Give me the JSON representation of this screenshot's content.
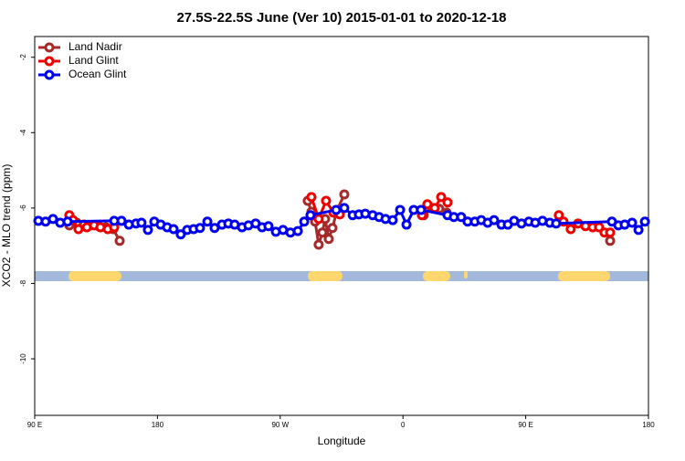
{
  "chart_data": {
    "type": "line",
    "title": "27.5S-22.5S June (Ver 10)   2015-01-01 to 2020-12-18",
    "x_label": "Longitude",
    "y_label": "XCO2 - MLO trend (ppm)",
    "xlim": [
      90,
      540
    ],
    "xticks": [
      {
        "value": 90,
        "label": "90 E"
      },
      180,
      {
        "value": 270,
        "label": "90 W"
      },
      {
        "value": 360,
        "label": "0"
      },
      {
        "value": 450,
        "label": "90 E"
      },
      {
        "value": 540,
        "label": "180"
      }
    ],
    "ylim": [
      -11.5,
      -1.45
    ],
    "yticks": [
      -2,
      -4,
      -6,
      -8,
      -10
    ],
    "legend": "top-left",
    "series": [
      {
        "name": "Land Nadir",
        "color": "#a52a2a",
        "x": [
          115.4,
          120.8,
          126.2,
          131.5,
          136.9,
          142.2,
          147.6,
          152.3,
          200,
          290.2,
          292.9,
          295.6,
          298.2,
          300.9,
          302.9,
          305.6,
          308.3,
          311.7,
          317.0,
          350,
          375.2,
          381.3,
          386.6,
          392.0,
          450,
          511.9
        ],
        "values": [
          -6.46,
          -6.39,
          -6.44,
          -6.46,
          -6.48,
          -6.51,
          -6.56,
          -6.87,
          null,
          -5.81,
          -6.1,
          -6.36,
          -6.97,
          -6.65,
          -6.29,
          -6.82,
          -6.53,
          -6.05,
          -5.64,
          null,
          -6.19,
          -6.0,
          -6.02,
          -6.12,
          null,
          -6.87
        ]
      },
      {
        "name": "Land Glint",
        "color": "#ee0000",
        "x": [
          115.4,
          118.1,
          122.1,
          128.2,
          133.5,
          138.2,
          143.6,
          148.3,
          200,
          292.9,
          298.2,
          303.6,
          309.0,
          313.7,
          350,
          373.9,
          377.9,
          383.3,
          388.0,
          392.7,
          450,
          474.3,
          477.7,
          483.0,
          488.4,
          493.8,
          499.1,
          503.8,
          507.8,
          511.9
        ],
        "values": [
          -6.19,
          -6.32,
          -6.56,
          -6.51,
          -6.46,
          -6.51,
          -6.56,
          -6.51,
          null,
          -5.71,
          -6.29,
          -5.81,
          -6.12,
          -6.17,
          null,
          -6.19,
          -5.9,
          -6.0,
          -5.71,
          -5.85,
          null,
          -6.19,
          -6.36,
          -6.56,
          -6.41,
          -6.48,
          -6.51,
          -6.51,
          -6.65,
          -6.65
        ]
      },
      {
        "name": "Ocean Glint",
        "color": "#0000ee",
        "x": [
          92.7,
          98.0,
          103.4,
          108.7,
          114.1,
          148.3,
          153.6,
          159.0,
          164.3,
          168.3,
          173.0,
          177.7,
          182.4,
          187.1,
          191.8,
          197.1,
          201.8,
          206.5,
          211.2,
          216.6,
          221.9,
          227.3,
          232.0,
          236.6,
          242.0,
          246.7,
          252.0,
          256.7,
          261.4,
          266.8,
          272.1,
          277.5,
          282.9,
          287.6,
          292.2,
          311.0,
          317.0,
          323.1,
          327.7,
          332.4,
          337.8,
          342.5,
          347.2,
          352.5,
          357.9,
          362.6,
          367.9,
          373.2,
          392.7,
          397.3,
          402.7,
          407.4,
          412.7,
          417.4,
          422.1,
          426.8,
          432.2,
          436.9,
          441.5,
          446.9,
          452.3,
          457.0,
          462.3,
          467.7,
          472.3,
          513.2,
          517.9,
          522.6,
          528.0,
          532.7,
          537.4
        ],
        "values": [
          -6.34,
          -6.36,
          -6.29,
          -6.39,
          -6.36,
          -6.34,
          -6.34,
          -6.44,
          -6.41,
          -6.39,
          -6.58,
          -6.36,
          -6.44,
          -6.51,
          -6.56,
          -6.7,
          -6.58,
          -6.56,
          -6.53,
          -6.36,
          -6.53,
          -6.44,
          -6.41,
          -6.44,
          -6.51,
          -6.46,
          -6.41,
          -6.51,
          -6.48,
          -6.63,
          -6.58,
          -6.65,
          -6.61,
          -6.36,
          -6.19,
          -6.05,
          -6.0,
          -6.19,
          -6.17,
          -6.15,
          -6.19,
          -6.24,
          -6.29,
          -6.32,
          -6.05,
          -6.44,
          -6.05,
          -6.05,
          -6.19,
          -6.24,
          -6.24,
          -6.36,
          -6.36,
          -6.32,
          -6.39,
          -6.32,
          -6.44,
          -6.44,
          -6.34,
          -6.41,
          -6.36,
          -6.39,
          -6.34,
          -6.39,
          -6.41,
          -6.36,
          -6.46,
          -6.44,
          -6.39,
          -6.58,
          -6.36
        ]
      }
    ]
  }
}
